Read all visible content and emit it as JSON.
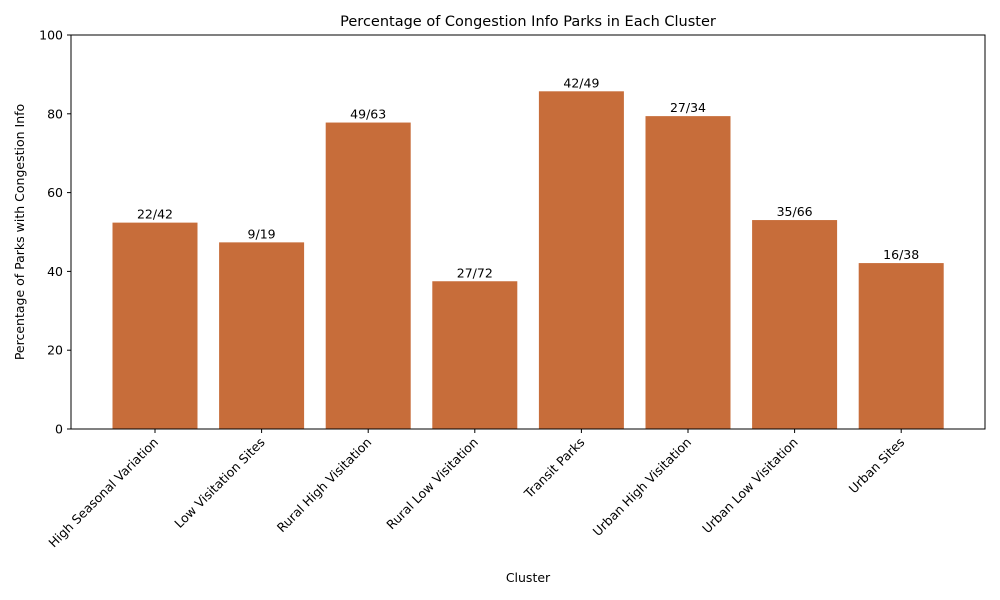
{
  "chart_data": {
    "type": "bar",
    "title": "Percentage of Congestion Info Parks in Each Cluster",
    "xlabel": "Cluster",
    "ylabel": "Percentage of Parks with Congestion Info",
    "categories": [
      "High Seasonal Variation",
      "Low Visitation Sites",
      "Rural High Visitation",
      "Rural Low Visitation",
      "Transit Parks",
      "Urban High Visitation",
      "Urban Low Visitation",
      "Urban Sites"
    ],
    "values": [
      52.38,
      47.37,
      77.78,
      37.5,
      85.71,
      79.41,
      53.03,
      42.11
    ],
    "data_labels": [
      "22/42",
      "9/19",
      "49/63",
      "27/72",
      "42/49",
      "27/34",
      "35/66",
      "16/38"
    ],
    "ylim": [
      0,
      100
    ],
    "yticks": [
      0,
      20,
      40,
      60,
      80,
      100
    ],
    "bar_color": "#c76d3a",
    "grid": false,
    "legend": "none"
  }
}
